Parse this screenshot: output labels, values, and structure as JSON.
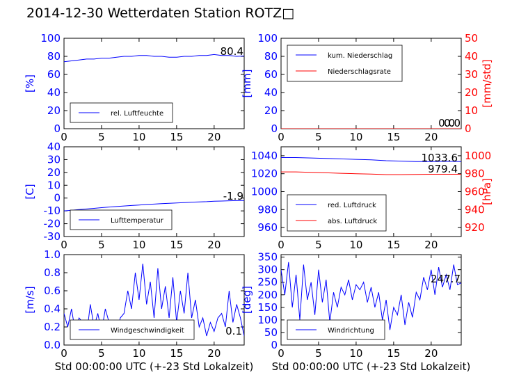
{
  "title": "2014-12-30 Wetterdaten Station ROTZ□",
  "chart_data": [
    {
      "type": "line",
      "panel": "top-left",
      "ylabel": "[%]",
      "ylim": [
        0,
        100
      ],
      "yticks": [
        0,
        20,
        40,
        60,
        80,
        100
      ],
      "xlim": [
        0,
        24
      ],
      "xticks": [
        0,
        5,
        10,
        15,
        20
      ],
      "xlabel": "",
      "annotation": "80.4",
      "legend_position": "lower-left",
      "series": [
        {
          "name": "rel. Luftfeuchte",
          "color": "#0000ff",
          "x": [
            0,
            1,
            2,
            3,
            4,
            5,
            6,
            7,
            8,
            9,
            10,
            11,
            12,
            13,
            14,
            15,
            16,
            17,
            18,
            19,
            20,
            21,
            22,
            23,
            24
          ],
          "y": [
            74,
            75,
            76,
            77,
            77,
            78,
            78,
            79,
            80,
            80,
            81,
            81,
            80,
            80,
            79,
            79,
            80,
            80,
            81,
            81,
            82,
            81,
            81,
            80,
            80.4
          ]
        }
      ]
    },
    {
      "type": "line",
      "panel": "top-right",
      "ylabel": "[mm]",
      "ylabel_right": "[mm/std]",
      "ylim": [
        0,
        100
      ],
      "yticks": [
        0,
        20,
        40,
        60,
        80,
        100
      ],
      "ylim_right": [
        0,
        50
      ],
      "yticks_right": [
        0,
        10,
        20,
        30,
        40,
        50
      ],
      "xlim": [
        0,
        24
      ],
      "xticks": [
        0,
        5,
        10,
        15,
        20
      ],
      "xlabel": "",
      "annotation": "0.0",
      "annotation2": "0.0",
      "legend_position": "upper-left",
      "series": [
        {
          "name": "kum. Niederschlag",
          "color": "#0000ff",
          "x": [
            0,
            24
          ],
          "y": [
            0,
            0
          ]
        },
        {
          "name": "Niederschlagsrate",
          "color": "#ff0000",
          "axis": "right",
          "x": [
            0,
            24
          ],
          "y": [
            0,
            0
          ]
        }
      ]
    },
    {
      "type": "line",
      "panel": "middle-left",
      "ylabel": "[C]",
      "ylim": [
        -30,
        40
      ],
      "yticks": [
        -30,
        -20,
        -10,
        0,
        10,
        20,
        30,
        40
      ],
      "xlim": [
        0,
        24
      ],
      "xticks": [
        0,
        5,
        10,
        15,
        20
      ],
      "xlabel": "",
      "annotation": "-1.9",
      "legend_position": "lower-left",
      "series": [
        {
          "name": "Lufttemperatur",
          "color": "#0000ff",
          "x": [
            0,
            1,
            2,
            3,
            4,
            5,
            6,
            7,
            8,
            9,
            10,
            11,
            12,
            13,
            14,
            15,
            16,
            17,
            18,
            19,
            20,
            21,
            22,
            23,
            24
          ],
          "y": [
            -10,
            -9.5,
            -9,
            -8.5,
            -8,
            -7.5,
            -7,
            -6.6,
            -6.2,
            -5.8,
            -5.4,
            -5,
            -4.7,
            -4.4,
            -4.1,
            -3.8,
            -3.5,
            -3.2,
            -3,
            -2.8,
            -2.5,
            -2.3,
            -2.1,
            -2,
            -1.9
          ]
        }
      ]
    },
    {
      "type": "line",
      "panel": "middle-right",
      "ylabel": "",
      "ylabel_right": "[hPa]",
      "ylim": [
        950,
        1050
      ],
      "yticks": [
        960,
        980,
        1000,
        1020,
        1040
      ],
      "ylim_right": [
        910,
        1010
      ],
      "yticks_right": [
        920,
        940,
        960,
        980,
        1000
      ],
      "xlim": [
        0,
        24
      ],
      "xticks": [
        0,
        5,
        10,
        15,
        20
      ],
      "xlabel": "",
      "annotation": "1033.6",
      "annotation2": "979.4",
      "legend_position": "lower-left",
      "series": [
        {
          "name": "red. Luftdruck",
          "color": "#0000ff",
          "x": [
            0,
            2,
            4,
            6,
            8,
            10,
            12,
            14,
            16,
            18,
            20,
            22,
            24
          ],
          "y": [
            1038,
            1038,
            1037.5,
            1037,
            1036.5,
            1036,
            1035.5,
            1034.5,
            1034,
            1033.5,
            1033.6,
            1033.8,
            1033.6
          ]
        },
        {
          "name": "abs. Luftdruck",
          "color": "#ff0000",
          "axis": "right",
          "x": [
            0,
            2,
            4,
            6,
            8,
            10,
            12,
            14,
            16,
            18,
            20,
            22,
            24
          ],
          "y": [
            982,
            982,
            981.5,
            981,
            980.5,
            980,
            979.5,
            979,
            979,
            979.2,
            979.4,
            979.4,
            979.4
          ]
        }
      ]
    },
    {
      "type": "line",
      "panel": "bottom-left",
      "ylabel": "[m/s]",
      "ylim": [
        0,
        1.0
      ],
      "yticks": [
        0.0,
        0.2,
        0.4,
        0.6,
        0.8,
        1.0
      ],
      "ytick_labels": [
        "0.0",
        "0.2",
        "0.4",
        "0.6",
        "0.8",
        "1.0"
      ],
      "xlim": [
        0,
        24
      ],
      "xticks": [
        0,
        5,
        10,
        15,
        20
      ],
      "xlabel": "Std 00:00:00 UTC (+-23 Std Lokalzeit)",
      "annotation": "0.1",
      "legend_position": "lower-center",
      "series": [
        {
          "name": "Windgeschwindigkeit",
          "color": "#0000ff",
          "x": [
            0,
            0.5,
            1,
            1.5,
            2,
            2.5,
            3,
            3.5,
            4,
            4.5,
            5,
            5.5,
            6,
            6.5,
            7,
            7.5,
            8,
            8.5,
            9,
            9.5,
            10,
            10.5,
            11,
            11.5,
            12,
            12.5,
            13,
            13.5,
            14,
            14.5,
            15,
            15.5,
            16,
            16.5,
            17,
            17.5,
            18,
            18.5,
            19,
            19.5,
            20,
            20.5,
            21,
            21.5,
            22,
            22.5,
            23,
            23.5,
            24
          ],
          "y": [
            0.35,
            0.2,
            0.4,
            0.15,
            0.3,
            0.25,
            0.1,
            0.45,
            0.2,
            0.35,
            0.15,
            0.4,
            0.25,
            0.2,
            0.1,
            0.3,
            0.35,
            0.6,
            0.4,
            0.8,
            0.5,
            0.9,
            0.45,
            0.7,
            0.3,
            0.85,
            0.4,
            0.65,
            0.3,
            0.75,
            0.25,
            0.6,
            0.35,
            0.8,
            0.3,
            0.5,
            0.2,
            0.3,
            0.1,
            0.25,
            0.15,
            0.3,
            0.35,
            0.2,
            0.6,
            0.25,
            0.45,
            0.3,
            0.1
          ]
        }
      ]
    },
    {
      "type": "line",
      "panel": "bottom-right",
      "ylabel": "[deg]",
      "ylim": [
        0,
        360
      ],
      "yticks": [
        0,
        50,
        100,
        150,
        200,
        250,
        300,
        350
      ],
      "xlim": [
        0,
        24
      ],
      "xticks": [
        0,
        5,
        10,
        15,
        20
      ],
      "xlabel": "Std 00:00:00 UTC (+-23 Std Lokalzeit)",
      "annotation": "247.7",
      "legend_position": "lower-left",
      "series": [
        {
          "name": "Windrichtung",
          "color": "#0000ff",
          "x": [
            0,
            0.5,
            1,
            1.5,
            2,
            2.5,
            3,
            3.5,
            4,
            4.5,
            5,
            5.5,
            6,
            6.5,
            7,
            7.5,
            8,
            8.5,
            9,
            9.5,
            10,
            10.5,
            11,
            11.5,
            12,
            12.5,
            13,
            13.5,
            14,
            14.5,
            15,
            15.5,
            16,
            16.5,
            17,
            17.5,
            18,
            18.5,
            19,
            19.5,
            20,
            20.5,
            21,
            21.5,
            22,
            22.5,
            23,
            23.5,
            24
          ],
          "y": [
            300,
            200,
            330,
            150,
            280,
            100,
            320,
            180,
            250,
            120,
            300,
            170,
            260,
            90,
            210,
            150,
            230,
            200,
            260,
            180,
            240,
            220,
            250,
            170,
            230,
            150,
            210,
            100,
            180,
            60,
            150,
            120,
            200,
            80,
            170,
            110,
            210,
            180,
            270,
            220,
            300,
            200,
            310,
            230,
            280,
            220,
            320,
            240,
            247.7
          ]
        }
      ]
    }
  ]
}
